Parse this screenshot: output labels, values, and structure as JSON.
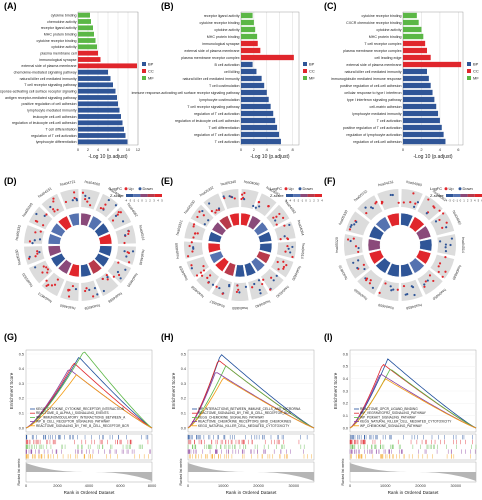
{
  "colors": {
    "bp": "#2f5597",
    "cc": "#e0262c",
    "mf": "#5bb746",
    "up": "#e0262c",
    "down": "#2f5597",
    "grid": "#cfcfcf"
  },
  "panel_labels": [
    "(A)",
    "(B)",
    "(C)",
    "(D)",
    "(E)",
    "(F)",
    "(G)",
    "(H)",
    "(I)"
  ],
  "go_panels": [
    {
      "label": "(A)",
      "xlabel": "-Log 10 (p.adjust)",
      "ticks": [
        0,
        2,
        4,
        6,
        8,
        10,
        12
      ],
      "max": 12,
      "legend": [
        "BP",
        "CC",
        "MF"
      ],
      "terms": [
        {
          "name": "cytokine binding",
          "v": 2.4,
          "c": "mf"
        },
        {
          "name": "chemokine activity",
          "v": 2.6,
          "c": "mf"
        },
        {
          "name": "receptor ligand activity",
          "v": 3.0,
          "c": "mf"
        },
        {
          "name": "MHC protein binding",
          "v": 3.2,
          "c": "mf"
        },
        {
          "name": "cytokine receptor binding",
          "v": 3.5,
          "c": "mf"
        },
        {
          "name": "cytokine activity",
          "v": 3.8,
          "c": "mf"
        },
        {
          "name": "plasma membrane cell",
          "v": 4.0,
          "c": "cc"
        },
        {
          "name": "immunological synapse",
          "v": 4.5,
          "c": "cc"
        },
        {
          "name": "external side of plasma membrane",
          "v": 11.8,
          "c": "cc"
        },
        {
          "name": "chemokine-mediated signaling pathway",
          "v": 6.0,
          "c": "bp"
        },
        {
          "name": "natural killer cell mediated immunity",
          "v": 6.5,
          "c": "bp"
        },
        {
          "name": "T cell receptor signaling pathway",
          "v": 7.0,
          "c": "bp"
        },
        {
          "name": "immune response-activating cell surface receptor signaling",
          "v": 7.5,
          "c": "bp"
        },
        {
          "name": "antigen receptor-mediated signaling pathway",
          "v": 7.8,
          "c": "bp"
        },
        {
          "name": "positive regulation of cell adhesion",
          "v": 8.0,
          "c": "bp"
        },
        {
          "name": "lymphocyte mediated immunity",
          "v": 8.3,
          "c": "bp"
        },
        {
          "name": "leukocyte cell-cell adhesion",
          "v": 8.6,
          "c": "bp"
        },
        {
          "name": "regulation of leukocyte cell-cell adhesion",
          "v": 8.9,
          "c": "bp"
        },
        {
          "name": "T cell differentiation",
          "v": 9.2,
          "c": "bp"
        },
        {
          "name": "regulation of T cell activation",
          "v": 9.5,
          "c": "bp"
        },
        {
          "name": "lymphocyte differentiation",
          "v": 9.9,
          "c": "bp"
        }
      ]
    },
    {
      "label": "(B)",
      "xlabel": "-Log 10 (p.adjust)",
      "ticks": [
        0,
        2,
        4,
        6,
        8
      ],
      "max": 9,
      "legend": [
        "BP",
        "CC",
        "MF"
      ],
      "terms": [
        {
          "name": "receptor ligand activity",
          "v": 1.8,
          "c": "mf"
        },
        {
          "name": "cytokine receptor binding",
          "v": 2.0,
          "c": "mf"
        },
        {
          "name": "cytokine activity",
          "v": 2.2,
          "c": "mf"
        },
        {
          "name": "MHC protein binding",
          "v": 2.5,
          "c": "mf"
        },
        {
          "name": "immunological synapse",
          "v": 2.6,
          "c": "cc"
        },
        {
          "name": "external side of plasma membrane",
          "v": 3.0,
          "c": "cc"
        },
        {
          "name": "plasma membrane receptor complex",
          "v": 8.2,
          "c": "cc"
        },
        {
          "name": "B cell activation",
          "v": 1.8,
          "c": "bp"
        },
        {
          "name": "cell killing",
          "v": 2.4,
          "c": "bp"
        },
        {
          "name": "natural killer cell mediated immunity",
          "v": 3.2,
          "c": "bp"
        },
        {
          "name": "T cell costimulation",
          "v": 3.6,
          "c": "bp"
        },
        {
          "name": "immune response-activating cell surface receptor signaling pathway",
          "v": 4.0,
          "c": "bp"
        },
        {
          "name": "lymphocyte costimulation",
          "v": 4.3,
          "c": "bp"
        },
        {
          "name": "T cell receptor signaling pathway",
          "v": 4.6,
          "c": "bp"
        },
        {
          "name": "regulation of T cell activation",
          "v": 5.0,
          "c": "bp"
        },
        {
          "name": "regulation of leukocyte cell-cell adhesion",
          "v": 5.3,
          "c": "bp"
        },
        {
          "name": "T cell differentiation",
          "v": 5.6,
          "c": "bp"
        },
        {
          "name": "regulation of T cell activation",
          "v": 5.9,
          "c": "bp"
        },
        {
          "name": "T cell activation",
          "v": 6.2,
          "c": "bp"
        }
      ]
    },
    {
      "label": "(C)",
      "xlabel": "-Log 10 (p.adjust)",
      "ticks": [
        0,
        2,
        4,
        6
      ],
      "max": 6.5,
      "legend": [
        "BP",
        "CC",
        "MF"
      ],
      "terms": [
        {
          "name": "cytokine receptor binding",
          "v": 1.5,
          "c": "mf"
        },
        {
          "name": "CXCR chemokine receptor binding",
          "v": 1.7,
          "c": "mf"
        },
        {
          "name": "cytokine activity",
          "v": 2.0,
          "c": "mf"
        },
        {
          "name": "MHC protein binding",
          "v": 2.2,
          "c": "mf"
        },
        {
          "name": "T cell receptor complex",
          "v": 2.4,
          "c": "cc"
        },
        {
          "name": "plasma membrane receptor complex",
          "v": 2.6,
          "c": "cc"
        },
        {
          "name": "cell leading edge",
          "v": 3.0,
          "c": "cc"
        },
        {
          "name": "external side of plasma membrane",
          "v": 6.3,
          "c": "cc"
        },
        {
          "name": "natural killer cell mediated immunity",
          "v": 2.6,
          "c": "bp"
        },
        {
          "name": "immunoglobulin mediated immune response",
          "v": 2.8,
          "c": "bp"
        },
        {
          "name": "positive regulation of cell-cell adhesion",
          "v": 3.0,
          "c": "bp"
        },
        {
          "name": "cellular response to type I interferon",
          "v": 3.2,
          "c": "bp"
        },
        {
          "name": "type I interferon signaling pathway",
          "v": 3.4,
          "c": "bp"
        },
        {
          "name": "cell-matrix adhesion",
          "v": 3.6,
          "c": "bp"
        },
        {
          "name": "lymphocyte mediated immunity",
          "v": 3.8,
          "c": "bp"
        },
        {
          "name": "T cell activation",
          "v": 4.0,
          "c": "bp"
        },
        {
          "name": "positive regulation of T cell activation",
          "v": 4.2,
          "c": "bp"
        },
        {
          "name": "regulation of lymphocyte activation",
          "v": 4.4,
          "c": "bp"
        },
        {
          "name": "regulation of cell-cell adhesion",
          "v": 4.6,
          "c": "bp"
        }
      ]
    }
  ],
  "circos_panels": [
    {
      "label": "(D)",
      "legend_title": "LogFC",
      "legend_items": [
        "Up",
        "Down"
      ],
      "zscore_label": "Z-score",
      "zscore_ticks": [
        "-4",
        "-3",
        "-2",
        "-1",
        "0",
        "1",
        "2",
        "3",
        "4",
        "5"
      ],
      "sectors": [
        "hsa04060",
        "hsa04061",
        "hsa04062",
        "hsa04514",
        "hsa04640",
        "hsa04650",
        "hsa04658",
        "hsa04659",
        "hsa04660",
        "hsa04672",
        "hsa05320",
        "hsa05330",
        "hsa05332",
        "hsa05340",
        "hsa04151",
        "hsa04721"
      ]
    },
    {
      "label": "(E)",
      "legend_title": "LogFC",
      "legend_items": [
        "Up",
        "Down"
      ],
      "zscore_label": "Z-score",
      "zscore_ticks": [
        "-5",
        "-4",
        "-3",
        "-2",
        "-1",
        "0",
        "1",
        "2",
        "3",
        "4"
      ],
      "sectors": [
        "hsa04060",
        "hsa04061",
        "hsa04062",
        "hsa04064",
        "hsa04514",
        "hsa04620",
        "hsa04630",
        "hsa04640",
        "hsa04650",
        "hsa04657",
        "hsa04658",
        "hsa04659",
        "hsa04660",
        "hsa05321",
        "hsa05330",
        "hsa05332",
        "hsa05340"
      ]
    },
    {
      "label": "(F)",
      "legend_title": "LogFC",
      "legend_items": [
        "Up",
        "Down"
      ],
      "zscore_label": "Z-score",
      "zscore_ticks": [
        "-4",
        "-3",
        "-2",
        "-1",
        "0",
        "1",
        "2",
        "3",
        "4",
        "5",
        "6"
      ],
      "sectors": [
        "hsa04060",
        "hsa04061",
        "hsa04062",
        "hsa04514",
        "hsa04640",
        "hsa04650",
        "hsa04658",
        "hsa04659",
        "hsa04660",
        "hsa04672",
        "hsa05320",
        "hsa05330",
        "hsa05332",
        "hsa04151"
      ]
    }
  ],
  "gsea_panels": [
    {
      "label": "(G)",
      "ylabel": "Enrichment Score",
      "ylabel2": "Ranked list metric",
      "xlabel": "Rank in Ordered Dataset",
      "xticks": [
        "0",
        "2000",
        "4000",
        "6000",
        "8000"
      ],
      "xtick_pos": [
        0,
        0.25,
        0.5,
        0.75,
        1.0
      ],
      "yticks": [
        "0.5",
        "0.4",
        "0.3",
        "0.2",
        "0.1",
        "0.0"
      ],
      "pathways": [
        {
          "name": "KEGG_CYTOKINE_CYTOKINE_RECEPTOR_INTERACTION",
          "color": "#1f4e9b",
          "peak": 0.48,
          "at": 0.42
        },
        {
          "name": "REACTOME_G_ALPHA_I_SIGNALLING_EVENTS",
          "color": "#e0262c",
          "peak": 0.44,
          "at": 0.38
        },
        {
          "name": "WP_IMMUNOMODULATORY_INTERACTIONS_BETWEEN_A",
          "color": "#5bb746",
          "peak": 0.52,
          "at": 0.46
        },
        {
          "name": "WP_B_CELL_RECEPTOR_SIGNALING_PATHWAY",
          "color": "#8a3fa0",
          "peak": 0.4,
          "at": 0.34
        },
        {
          "name": "REACTOME_SIGNALING_BY_THE_B_CELL_RECEPTOR_BCR",
          "color": "#f39c12",
          "peak": 0.36,
          "at": 0.4
        }
      ]
    },
    {
      "label": "(H)",
      "ylabel": "Enrichment Score",
      "ylabel2": "Ranked list metric",
      "xlabel": "Rank in Ordered Dataset",
      "xticks": [
        "0",
        "10000",
        "20000",
        "30000"
      ],
      "xtick_pos": [
        0,
        0.28,
        0.56,
        0.84
      ],
      "yticks": [
        "0.5",
        "0.4",
        "0.3",
        "0.2",
        "0.1",
        "0.0"
      ],
      "pathways": [
        {
          "name": "WP_INTERACTIONS_BETWEEN_IMMUNE_CELLS_AND_MICRORNA",
          "color": "#1f4e9b",
          "peak": 0.5,
          "at": 0.26
        },
        {
          "name": "REACTOME_SIGNALING_BY_THE_B_CELL_RECEPTOR_BCR",
          "color": "#e0262c",
          "peak": 0.46,
          "at": 0.24
        },
        {
          "name": "KEGG_CHEMOKINE_SIGNALING_PATHWAY",
          "color": "#5bb746",
          "peak": 0.42,
          "at": 0.3
        },
        {
          "name": "REACTOME_CHEMOKINE_RECEPTORS_BIND_CHEMOKINES",
          "color": "#8a3fa0",
          "peak": 0.38,
          "at": 0.22
        },
        {
          "name": "KEGG_NATURAL_KILLER_CELL_MEDIATED_CYTOTOXICITY",
          "color": "#f39c12",
          "peak": 0.34,
          "at": 0.28
        }
      ]
    },
    {
      "label": "(I)",
      "ylabel": "Enrichment Score",
      "ylabel2": "Ranked list metric",
      "xlabel": "Rank in Ordered Dataset",
      "xticks": [
        "0",
        "10000",
        "20000",
        "30000"
      ],
      "xtick_pos": [
        0,
        0.28,
        0.56,
        0.84
      ],
      "yticks": [
        "0.6",
        "0.5",
        "0.4",
        "0.3",
        "0.2",
        "0.1",
        "0.0"
      ],
      "pathways": [
        {
          "name": "REACTOME_GPCR_LIGAND_BINDING",
          "color": "#1f4e9b",
          "peak": 0.56,
          "at": 0.3
        },
        {
          "name": "WP_VEGFAVEGFR2_SIGNALING_PATHWAY",
          "color": "#e0262c",
          "peak": 0.52,
          "at": 0.26
        },
        {
          "name": "WP_PI3KAKT_SIGNALING_PATHWAY",
          "color": "#5bb746",
          "peak": 0.48,
          "at": 0.32
        },
        {
          "name": "KEGG_NATURAL_KILLER_CELL_MEDIATED_CYTOTOXICITY",
          "color": "#8a3fa0",
          "peak": 0.44,
          "at": 0.24
        },
        {
          "name": "WP_CHEMOKINE_SIGNALING_PATHWAY",
          "color": "#f39c12",
          "peak": 0.4,
          "at": 0.28
        }
      ]
    }
  ]
}
